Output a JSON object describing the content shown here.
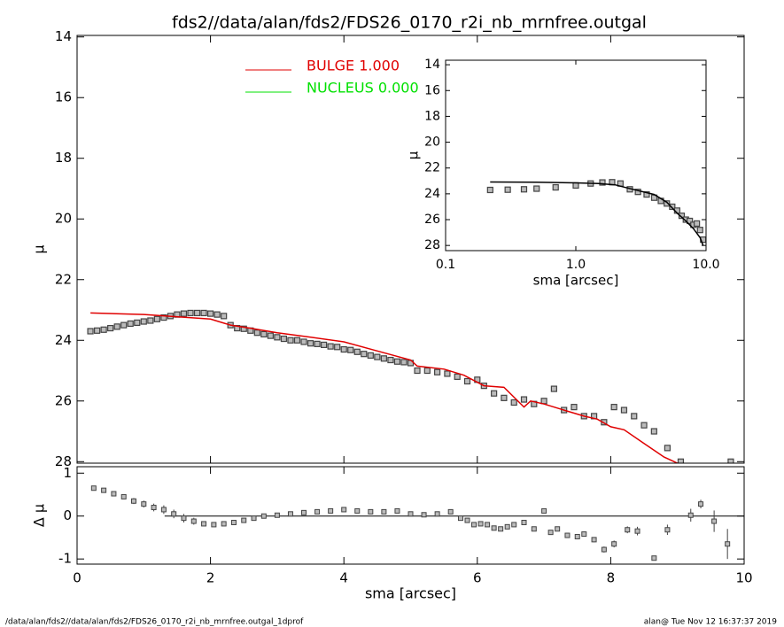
{
  "chart_data": [
    {
      "type": "scatter",
      "title": "fds2//data/alan/fds2/FDS26_0170_r2i_nb_mrnfree.outgal",
      "y_label": "μ",
      "xlim": [
        0,
        10
      ],
      "ylim": [
        28.05,
        13.95
      ],
      "yticks": [
        14,
        16,
        18,
        20,
        22,
        24,
        26,
        28
      ],
      "legend": "upper left",
      "series": [
        {
          "style": "markers",
          "color": "#444444",
          "x": [
            0.2,
            0.3,
            0.4,
            0.5,
            0.6,
            0.7,
            0.8,
            0.9,
            1.0,
            1.1,
            1.2,
            1.3,
            1.4,
            1.5,
            1.6,
            1.7,
            1.8,
            1.9,
            2.0,
            2.1,
            2.2,
            2.3,
            2.4,
            2.5,
            2.6,
            2.7,
            2.8,
            2.9,
            3.0,
            3.1,
            3.2,
            3.3,
            3.4,
            3.5,
            3.6,
            3.7,
            3.8,
            3.9,
            4.0,
            4.1,
            4.2,
            4.3,
            4.4,
            4.5,
            4.6,
            4.7,
            4.8,
            4.9,
            5.0,
            5.1,
            5.25,
            5.4,
            5.55,
            5.7,
            5.85,
            6.0,
            6.1,
            6.25,
            6.4,
            6.55,
            6.7,
            6.85,
            7.0,
            7.15,
            7.3,
            7.45,
            7.6,
            7.75,
            7.9,
            8.05,
            8.2,
            8.35,
            8.5,
            8.65,
            8.85,
            9.05,
            9.8
          ],
          "values": [
            23.7,
            23.68,
            23.65,
            23.6,
            23.55,
            23.5,
            23.45,
            23.42,
            23.38,
            23.35,
            23.3,
            23.25,
            23.2,
            23.15,
            23.12,
            23.1,
            23.1,
            23.1,
            23.12,
            23.15,
            23.2,
            23.5,
            23.6,
            23.62,
            23.68,
            23.75,
            23.8,
            23.85,
            23.9,
            23.95,
            24.0,
            24.0,
            24.05,
            24.1,
            24.12,
            24.15,
            24.2,
            24.22,
            24.3,
            24.32,
            24.38,
            24.45,
            24.5,
            24.55,
            24.6,
            24.65,
            24.7,
            24.72,
            24.75,
            25.0,
            25.0,
            25.05,
            25.1,
            25.2,
            25.35,
            25.3,
            25.5,
            25.75,
            25.9,
            26.05,
            25.95,
            26.1,
            26.0,
            25.6,
            26.3,
            26.2,
            26.5,
            26.5,
            26.7,
            26.2,
            26.3,
            26.5,
            26.8,
            27.0,
            27.55,
            28.0,
            28.0
          ]
        },
        {
          "name": "BULGE  1.000",
          "style": "line",
          "color": "#e00000",
          "x": [
            0.2,
            1,
            2,
            2.3,
            2.6,
            3,
            3.5,
            4,
            4.5,
            5,
            5.1,
            5.5,
            5.8,
            6.1,
            6.4,
            6.7,
            6.8,
            7,
            7.3,
            7.6,
            7.8,
            8,
            8.2,
            8.5,
            8.8,
            9.0,
            9.2
          ],
          "values": [
            23.1,
            23.15,
            23.3,
            23.5,
            23.6,
            23.75,
            23.9,
            24.05,
            24.35,
            24.65,
            24.85,
            24.95,
            25.15,
            25.5,
            25.55,
            26.2,
            26.0,
            26.1,
            26.3,
            26.5,
            26.6,
            26.85,
            26.95,
            27.4,
            27.85,
            28.05,
            28.15
          ]
        },
        {
          "name": "NUCLEUS  0.000",
          "style": "line",
          "color": "#00e000"
        }
      ]
    },
    {
      "type": "scatter",
      "x_label": "sma [arcsec]",
      "y_label": "μ",
      "xlog": true,
      "xlim": [
        0.1,
        10
      ],
      "ylim": [
        28.4,
        13.65
      ],
      "xticks": [
        0.1,
        {
          "value": 1,
          "label": "1.0"
        },
        {
          "value": 10,
          "label": "10.0"
        }
      ],
      "yticks": [
        14,
        16,
        18,
        20,
        22,
        24,
        26,
        28
      ],
      "series": [
        {
          "style": "markers",
          "color": "#444444",
          "x": [
            0.22,
            0.3,
            0.4,
            0.5,
            0.7,
            1.0,
            1.3,
            1.6,
            1.9,
            2.2,
            2.6,
            3.0,
            3.5,
            4.0,
            4.5,
            5.0,
            5.5,
            6.0,
            6.5,
            7.0,
            7.5,
            8.0,
            8.5,
            9.0,
            9.5
          ],
          "values": [
            23.7,
            23.68,
            23.65,
            23.6,
            23.5,
            23.35,
            23.2,
            23.12,
            23.1,
            23.2,
            23.65,
            23.85,
            24.05,
            24.3,
            24.55,
            24.75,
            25.0,
            25.3,
            25.7,
            26.0,
            26.1,
            26.4,
            26.3,
            26.8,
            27.55
          ]
        },
        {
          "style": "line",
          "color": "#000000",
          "x": [
            0.22,
            0.5,
            1.0,
            1.5,
            2.0,
            2.5,
            3,
            4,
            5,
            6,
            7,
            8,
            9,
            9.5
          ],
          "values": [
            23.08,
            23.1,
            23.15,
            23.2,
            23.3,
            23.55,
            23.75,
            24.05,
            24.65,
            25.5,
            26.1,
            26.7,
            27.4,
            28.0
          ]
        }
      ]
    },
    {
      "type": "errorbar",
      "x_label": "sma [arcsec]",
      "y_label": "Δ μ",
      "xlim": [
        0,
        10
      ],
      "ylim": [
        -1.12,
        1.15
      ],
      "xticks": [
        0,
        2,
        4,
        6,
        8,
        10
      ],
      "yticks": [
        -1,
        0,
        1
      ],
      "x": [
        0.25,
        0.4,
        0.55,
        0.7,
        0.85,
        1.0,
        1.15,
        1.3,
        1.45,
        1.6,
        1.75,
        1.9,
        2.05,
        2.2,
        2.35,
        2.5,
        2.65,
        2.8,
        3.0,
        3.2,
        3.4,
        3.6,
        3.8,
        4.0,
        4.2,
        4.4,
        4.6,
        4.8,
        5.0,
        5.2,
        5.4,
        5.6,
        5.75,
        5.85,
        5.95,
        6.05,
        6.15,
        6.25,
        6.35,
        6.45,
        6.55,
        6.7,
        6.85,
        7.0,
        7.1,
        7.2,
        7.35,
        7.5,
        7.6,
        7.75,
        7.9,
        8.05,
        8.25,
        8.4,
        8.65,
        8.85,
        9.2,
        9.35,
        9.55,
        9.75
      ],
      "values": [
        0.65,
        0.6,
        0.52,
        0.45,
        0.35,
        0.28,
        0.2,
        0.15,
        0.05,
        -0.05,
        -0.12,
        -0.18,
        -0.2,
        -0.18,
        -0.15,
        -0.1,
        -0.05,
        0.0,
        0.02,
        0.05,
        0.08,
        0.1,
        0.12,
        0.15,
        0.12,
        0.1,
        0.1,
        0.12,
        0.05,
        0.03,
        0.05,
        0.1,
        -0.05,
        -0.1,
        -0.2,
        -0.18,
        -0.2,
        -0.28,
        -0.3,
        -0.25,
        -0.2,
        -0.15,
        -0.3,
        0.12,
        -0.38,
        -0.3,
        -0.45,
        -0.48,
        -0.42,
        -0.55,
        -0.78,
        -0.65,
        -0.32,
        -0.35,
        -0.98,
        -0.32,
        0.02,
        0.28,
        -0.12,
        -0.65
      ],
      "errors": [
        0.02,
        0.03,
        0.04,
        0.05,
        0.07,
        0.08,
        0.09,
        0.1,
        0.1,
        0.1,
        0.08,
        0.06,
        0.05,
        0.04,
        0.03,
        0.02,
        0.02,
        0.02,
        0.02,
        0.02,
        0.02,
        0.02,
        0.02,
        0.02,
        0.02,
        0.02,
        0.02,
        0.02,
        0.02,
        0.02,
        0.02,
        0.03,
        0.03,
        0.03,
        0.03,
        0.03,
        0.03,
        0.03,
        0.03,
        0.03,
        0.04,
        0.04,
        0.05,
        0.05,
        0.04,
        0.05,
        0.05,
        0.05,
        0.06,
        0.06,
        0.07,
        0.08,
        0.08,
        0.1,
        0.05,
        0.12,
        0.15,
        0.1,
        0.25,
        0.35
      ],
      "color": "#444444"
    }
  ],
  "footer": {
    "left": "/data/alan/fds2//data/alan/fds2/FDS26_0170_r2i_nb_mrnfree.outgal_1dprof",
    "right": "alan@  Tue Nov 12 16:37:37 2019"
  }
}
